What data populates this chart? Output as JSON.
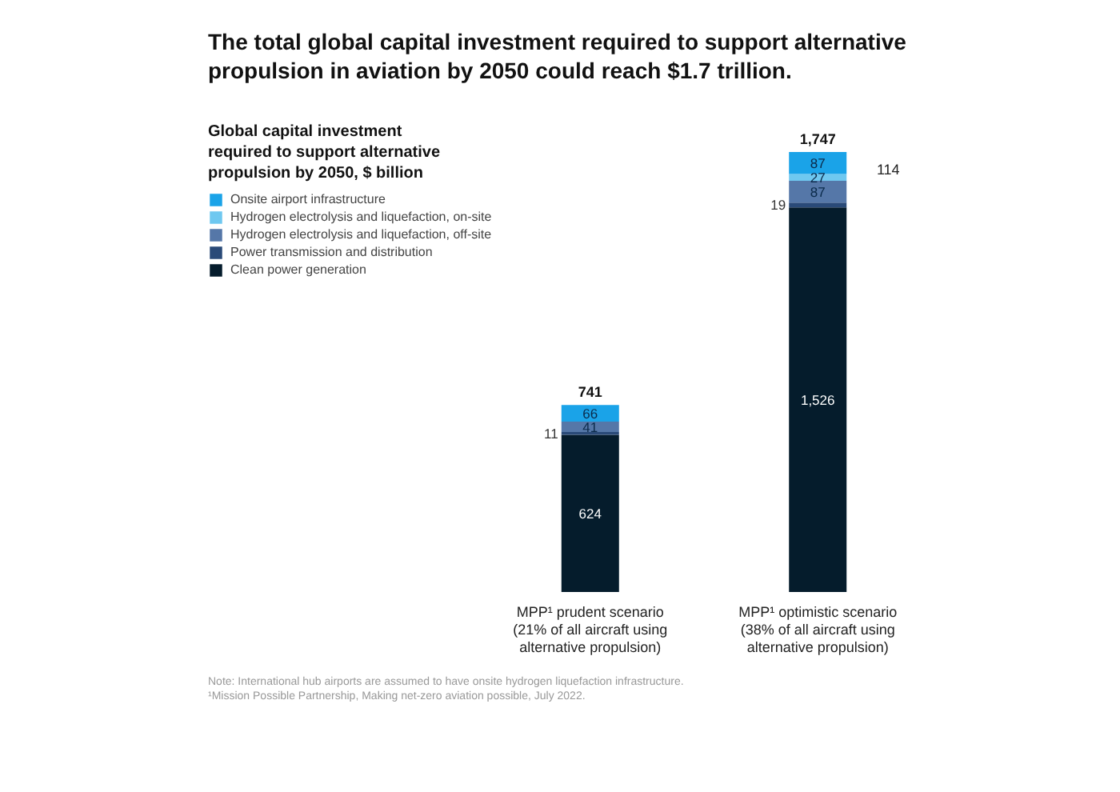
{
  "chart_data": {
    "type": "bar",
    "stacked": true,
    "title": "The total global capital investment required to support alternative\npropulsion in aviation by 2050 could reach $1.7 trillion.",
    "subtitle": "Global capital investment\nrequired to support alternative\npropulsion by 2050, $ billion",
    "categories": [
      "MPP¹ prudent scenario\n(21% of all aircraft using\nalternative propulsion)",
      "MPP¹ optimistic scenario\n(38% of all aircraft using\nalternative propulsion)"
    ],
    "series": [
      {
        "name": "Clean power generation",
        "color": "#051c2c",
        "values": [
          624,
          1526
        ],
        "value_labels": [
          "624",
          "1,526"
        ]
      },
      {
        "name": "Power transmission and distribution",
        "color": "#2a4a78",
        "values": [
          11,
          19
        ],
        "value_labels": [
          "11",
          "19"
        ]
      },
      {
        "name": "Hydrogen electrolysis and liquefaction, off-site",
        "color": "#5577a8",
        "values": [
          41,
          87
        ],
        "value_labels": [
          "41",
          "87"
        ]
      },
      {
        "name": "Hydrogen electrolysis and liquefaction, on-site",
        "color": "#6fc8f0",
        "values": [
          0,
          27
        ],
        "value_labels": [
          null,
          "27"
        ]
      },
      {
        "name": "Onsite airport infrastructure",
        "color": "#1aa3e8",
        "values": [
          66,
          87
        ],
        "value_labels": [
          "66",
          "87"
        ]
      }
    ],
    "totals": [
      "741",
      "1,747"
    ],
    "legend": "top left",
    "grid": false,
    "tick_labels": "x",
    "annotations": [
      "114",
      "Note: International hub airports are assumed to have onsite hydrogen liquefaction infrastructure.\n¹Mission Possible Partnership, Making net-zero aviation possible, July 2022."
    ]
  }
}
